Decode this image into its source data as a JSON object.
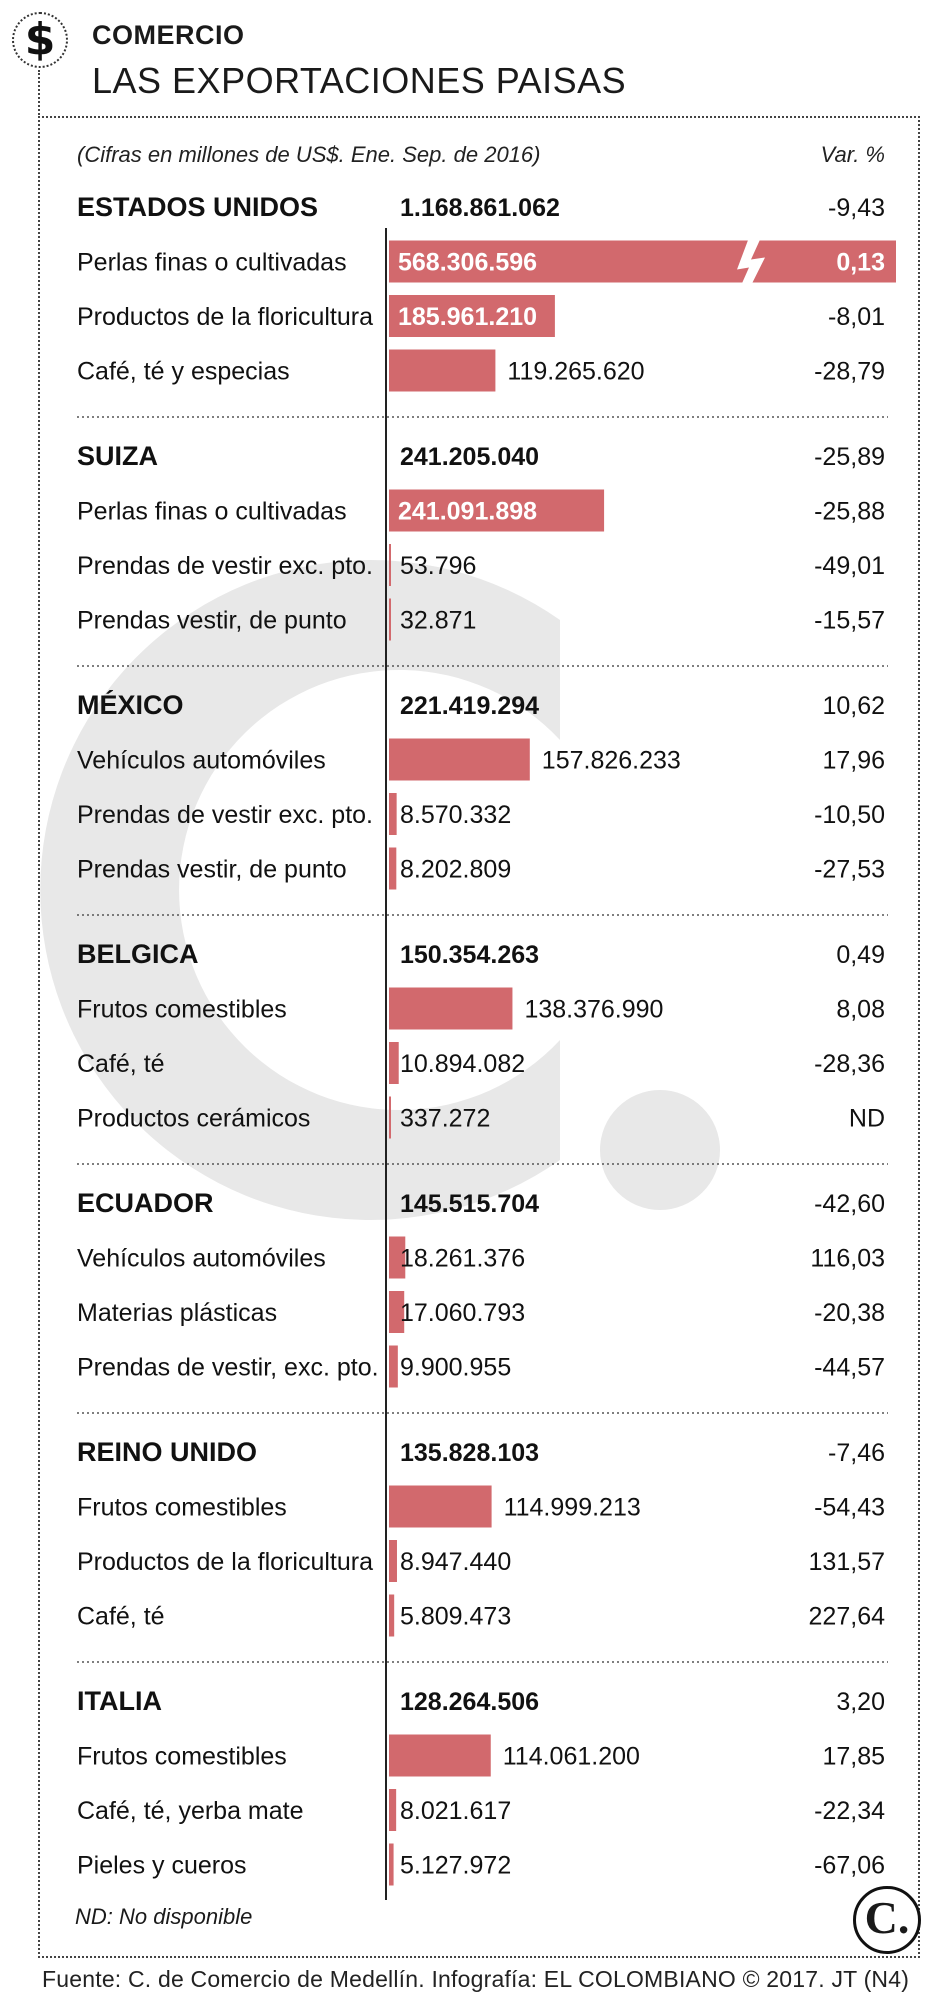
{
  "header": {
    "icon": "dollar-sign-icon",
    "icon_glyph": "$",
    "section_label": "COMERCIO",
    "title": "LAS EXPORTACIONES PAISAS"
  },
  "footer": {
    "note": "ND: No disponible",
    "logo_glyph": "C.",
    "source": "Fuente: C. de Comercio de Medellín. Infografía: EL COLOMBIANO © 2017. JT (N4)"
  },
  "colors": {
    "bar": "#d2696d",
    "watermark": "#e8e8e8",
    "ink": "#1a1a1a"
  },
  "chart_data": {
    "type": "bar",
    "subtitle": "(Cifras en millones de US$. Ene. Sep. de 2016)",
    "variation_header": "Var. %",
    "broken_bar_value": "568.306.596",
    "groups": [
      {
        "country": "ESTADOS UNIDOS",
        "total": "1.168.861.062",
        "var": "-9,43",
        "items": [
          {
            "label": "Perlas finas o cultivadas",
            "value": 568306596,
            "value_label": "568.306.596",
            "var": "0,13"
          },
          {
            "label": "Productos de la floricultura",
            "value": 185961210,
            "value_label": "185.961.210",
            "var": "-8,01"
          },
          {
            "label": "Café, té  y especias",
            "value": 119265620,
            "value_label": "119.265.620",
            "var": "-28,79"
          }
        ]
      },
      {
        "country": "SUIZA",
        "total": "241.205.040",
        "var": "-25,89",
        "items": [
          {
            "label": "Perlas finas o cultivadas",
            "value": 241091898,
            "value_label": "241.091.898",
            "var": "-25,88"
          },
          {
            "label": "Prendas de vestir exc. pto.",
            "value": 53796,
            "value_label": "53.796",
            "var": "-49,01"
          },
          {
            "label": "Prendas vestir, de punto",
            "value": 32871,
            "value_label": "32.871",
            "var": "-15,57"
          }
        ]
      },
      {
        "country": "MÉXICO",
        "total": "221.419.294",
        "var": "10,62",
        "items": [
          {
            "label": "Vehículos automóviles",
            "value": 157826233,
            "value_label": "157.826.233",
            "var": "17,96"
          },
          {
            "label": "Prendas de vestir exc. pto.",
            "value": 8570332,
            "value_label": "8.570.332",
            "var": "-10,50"
          },
          {
            "label": "Prendas vestir, de punto",
            "value": 8202809,
            "value_label": "8.202.809",
            "var": "-27,53"
          }
        ]
      },
      {
        "country": "BELGICA",
        "total": "150.354.263",
        "var": "0,49",
        "items": [
          {
            "label": "Frutos comestibles",
            "value": 138376990,
            "value_label": "138.376.990",
            "var": "8,08"
          },
          {
            "label": "Café, té",
            "value": 10894082,
            "value_label": "10.894.082",
            "var": "-28,36"
          },
          {
            "label": "Productos cerámicos",
            "value": 337272,
            "value_label": "337.272",
            "var": "ND"
          }
        ]
      },
      {
        "country": "ECUADOR",
        "total": "145.515.704",
        "var": "-42,60",
        "items": [
          {
            "label": "Vehículos automóviles",
            "value": 18261376,
            "value_label": "18.261.376",
            "var": "116,03"
          },
          {
            "label": "Materias plásticas",
            "value": 17060793,
            "value_label": "17.060.793",
            "var": "-20,38"
          },
          {
            "label": "Prendas de vestir, exc. pto.",
            "value": 9900955,
            "value_label": "9.900.955",
            "var": "-44,57"
          }
        ]
      },
      {
        "country": "REINO UNIDO",
        "total": "135.828.103",
        "var": "-7,46",
        "items": [
          {
            "label": "Frutos comestibles",
            "value": 114999213,
            "value_label": "114.999.213",
            "var": "-54,43"
          },
          {
            "label": "Productos de la floricultura",
            "value": 8947440,
            "value_label": "8.947.440",
            "var": "131,57"
          },
          {
            "label": "Café, té",
            "value": 5809473,
            "value_label": "5.809.473",
            "var": "227,64"
          }
        ]
      },
      {
        "country": "ITALIA",
        "total": "128.264.506",
        "var": "3,20",
        "items": [
          {
            "label": "Frutos comestibles",
            "value": 114061200,
            "value_label": "114.061.200",
            "var": "17,85"
          },
          {
            "label": "Café, té, yerba mate",
            "value": 8021617,
            "value_label": "8.021.617",
            "var": "-22,34"
          },
          {
            "label": "Pieles y cueros",
            "value": 5127972,
            "value_label": "5.127.972",
            "var": "-67,06"
          }
        ]
      }
    ]
  }
}
